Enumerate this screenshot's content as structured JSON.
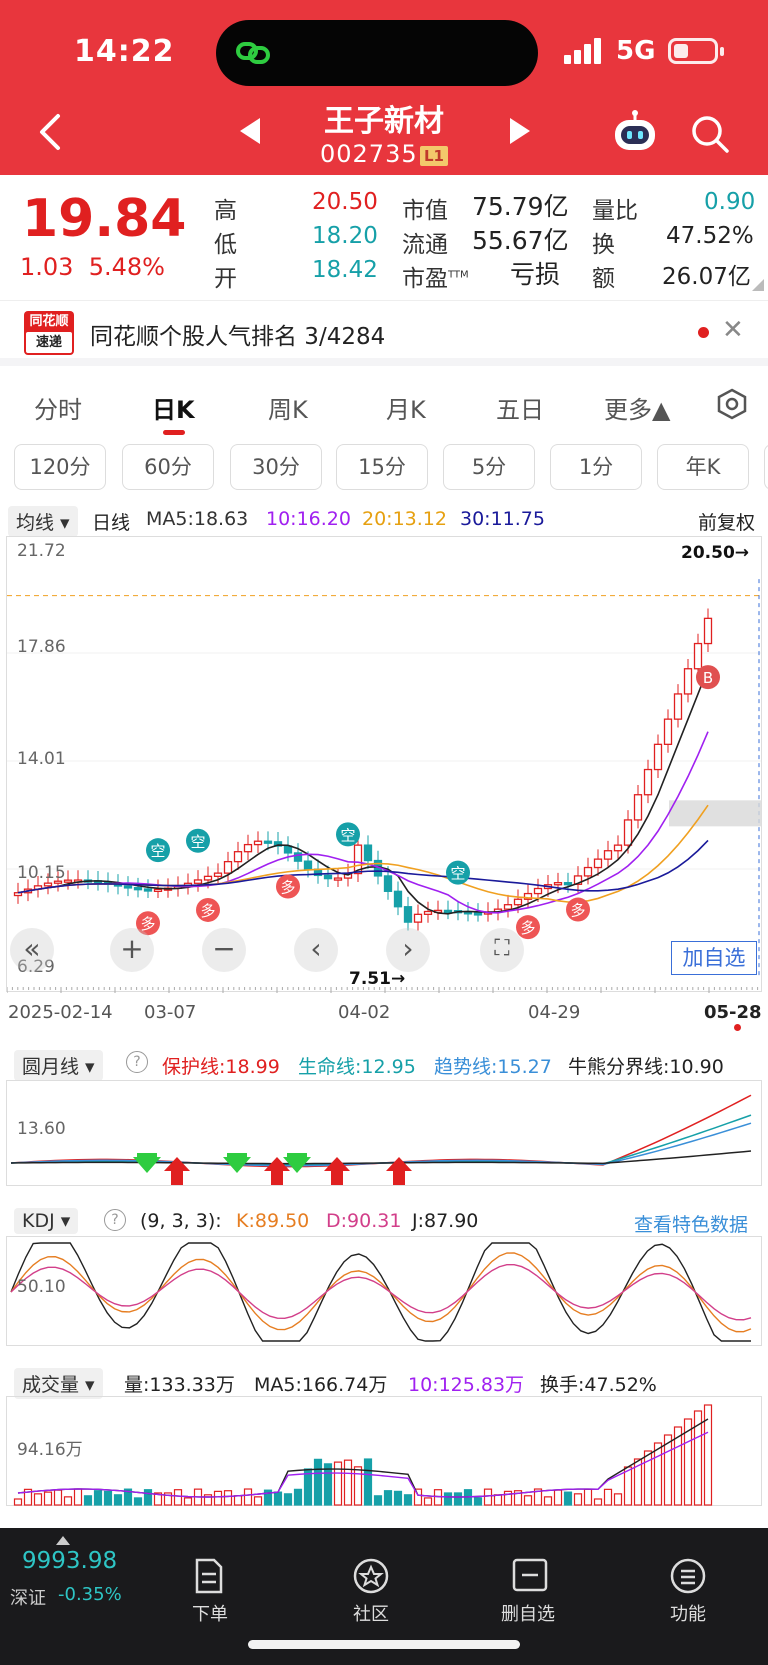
{
  "status": {
    "time": "14:22",
    "network": "5G"
  },
  "header": {
    "title": "王子新材",
    "code": "002735",
    "level": "L1"
  },
  "quote": {
    "price": "19.84",
    "change": "1.03",
    "change_pct": "5.48%",
    "high_label": "高",
    "high": "20.50",
    "low_label": "低",
    "low": "18.20",
    "open_label": "开",
    "open": "18.42",
    "mcap_label": "市值",
    "mcap": "75.79亿",
    "float_label": "流通",
    "float": "55.67亿",
    "pe_label": "市盈",
    "pe_sup": "TTM",
    "pe": "亏损",
    "vr_label": "量比",
    "vr": "0.90",
    "turnover_label": "换",
    "turnover": "47.52%",
    "amount_label": "额",
    "amount": "26.07亿"
  },
  "banner": {
    "logo_line1": "同花顺",
    "logo_line2": "速递",
    "text": "同花顺个股人气排名 3/4284"
  },
  "tabs": [
    "分时",
    "日K",
    "周K",
    "月K",
    "五日",
    "更多▲"
  ],
  "periods": [
    "120分",
    "60分",
    "30分",
    "15分",
    "5分",
    "1分",
    "年K"
  ],
  "main_chart": {
    "indicator": "均线",
    "line_type": "日线",
    "ma5": "MA5:18.63",
    "ma10": "10:16.20",
    "ma20": "20:13.12",
    "ma30": "30:11.75",
    "adjust": "前复权",
    "y_labels": [
      "21.72",
      "17.86",
      "14.01",
      "10.15",
      "6.29"
    ],
    "max_label": "20.50→",
    "min_label": "7.51→",
    "x_labels": [
      "2025-02-14",
      "03-07",
      "04-02",
      "04-29",
      "05-28"
    ],
    "add_watch": "加自选",
    "marker_short": "空",
    "marker_long": "多",
    "marker_b": "B"
  },
  "moon_line": {
    "name": "圆月线",
    "protect": "保护线:18.99",
    "life": "生命线:12.95",
    "trend": "趋势线:15.27",
    "bull_bear": "牛熊分界线:10.90",
    "y_label": "13.60"
  },
  "kdj": {
    "name": "KDJ",
    "params": "(9, 3, 3):",
    "k": "K:89.50",
    "d": "D:90.31",
    "j": "J:87.90",
    "link": "查看特色数据",
    "y_label": "50.10"
  },
  "volume": {
    "name": "成交量",
    "vol": "量:133.33万",
    "ma5": "MA5:166.74万",
    "ma10": "10:125.83万",
    "turnover": "换手:47.52%",
    "y_label": "94.16万"
  },
  "bottom": {
    "index_value": "9993.98",
    "index_name": "深证",
    "index_change": "-0.35%",
    "order": "下单",
    "community": "社区",
    "remove": "删自选",
    "func": "功能"
  },
  "colors": {
    "up": "#e02020",
    "down": "#16a0a8",
    "header": "#e8363d",
    "ma5": "#222222",
    "ma10": "#a020f0",
    "ma20": "#f0a020",
    "ma30": "#1a1a9a"
  }
}
